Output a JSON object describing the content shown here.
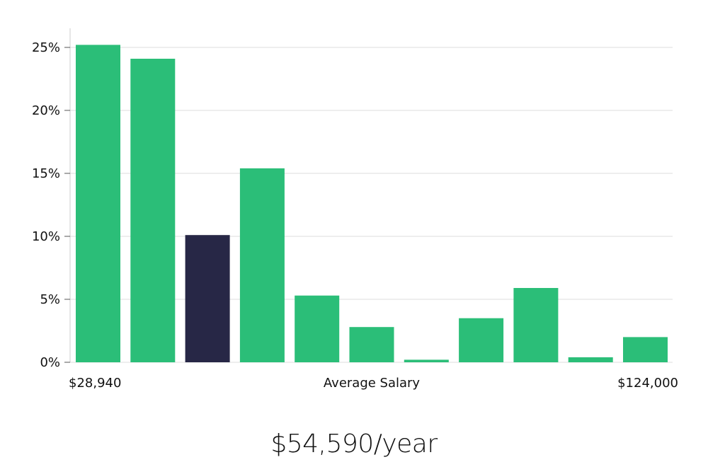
{
  "chart_data": {
    "type": "bar",
    "title": "",
    "xlabel": "Average Salary",
    "ylabel": "",
    "x_min_label": "$28,940",
    "x_max_label": "$124,000",
    "values": [
      25.2,
      24.1,
      10.1,
      15.4,
      5.3,
      2.8,
      0.2,
      3.5,
      5.9,
      0.4,
      2.0
    ],
    "highlight_index": 2,
    "ylim": [
      0,
      26
    ],
    "yticks": [
      {
        "value": 0,
        "label": "0%"
      },
      {
        "value": 5,
        "label": "5%"
      },
      {
        "value": 10,
        "label": "10%"
      },
      {
        "value": 15,
        "label": "15%"
      },
      {
        "value": 20,
        "label": "20%"
      },
      {
        "value": 25,
        "label": "25%"
      }
    ],
    "grid": true,
    "colors": {
      "bar": "#2bbe78",
      "highlight": "#272746",
      "grid": "#dddddd",
      "axis": "#cccccc"
    }
  },
  "salary": {
    "display": "$54,590/year"
  }
}
